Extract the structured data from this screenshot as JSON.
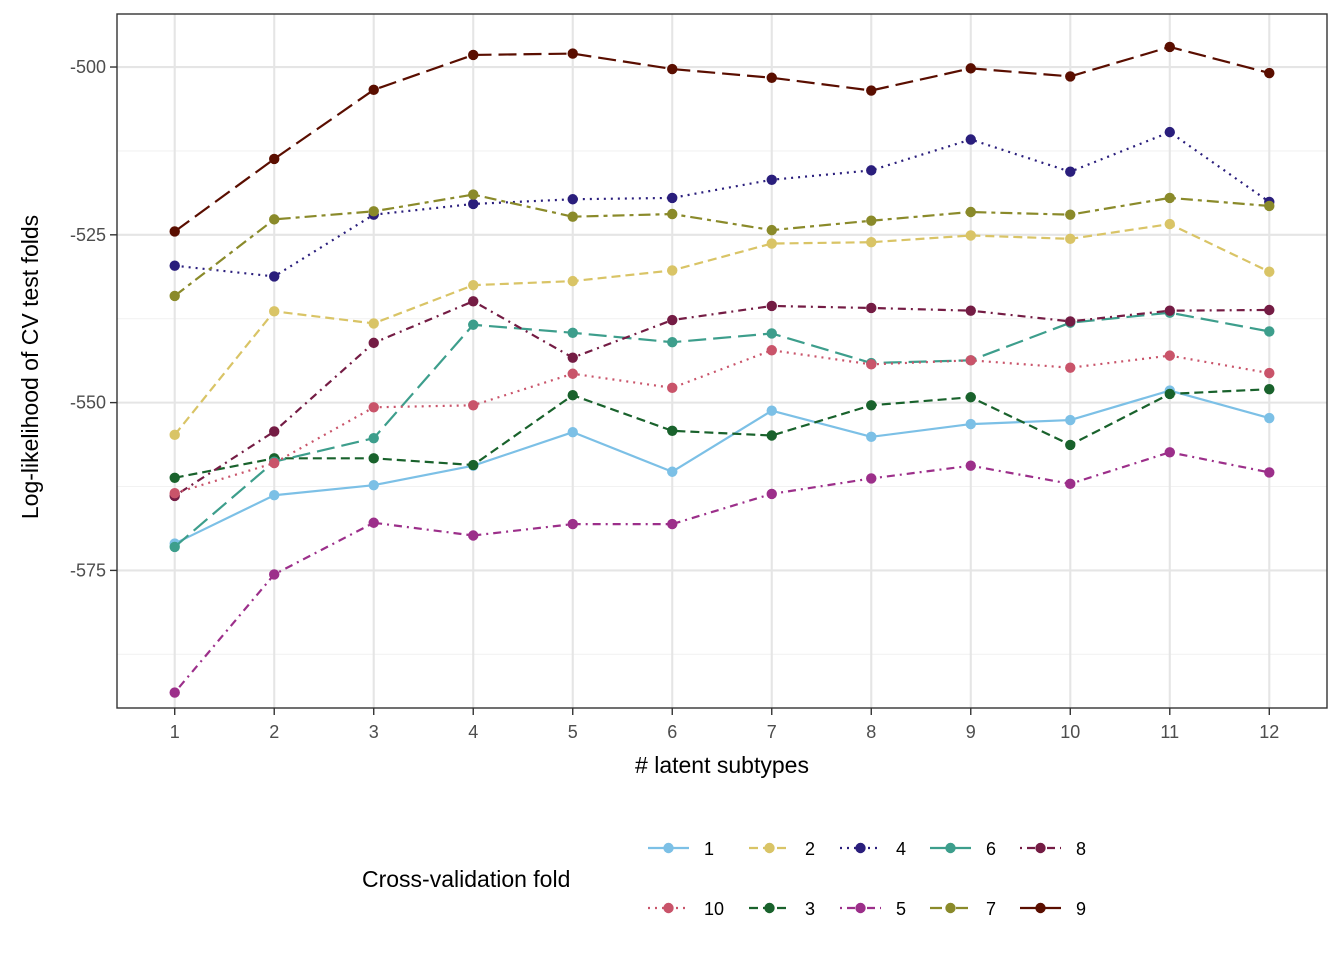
{
  "chart_data": {
    "type": "line",
    "title": "",
    "xlabel": "# latent subtypes",
    "ylabel": "Log-likelihood of CV test folds",
    "x": [
      1,
      2,
      3,
      4,
      5,
      6,
      7,
      8,
      9,
      10,
      11,
      12
    ],
    "x_ticks": [
      "1",
      "2",
      "3",
      "4",
      "5",
      "6",
      "7",
      "8",
      "9",
      "10",
      "11",
      "12"
    ],
    "xlim": [
      0.42,
      12.58
    ],
    "ylim": [
      -595.5,
      -492.1
    ],
    "y_ticks": [
      -575,
      -550,
      -525,
      -500
    ],
    "y_tick_labels": [
      "-575",
      "-550",
      "-525",
      "-500"
    ],
    "grid": true,
    "legend": {
      "title": "Cross-validation fold",
      "position": "bottom",
      "order": [
        "1",
        "2",
        "4",
        "6",
        "8",
        "10",
        "3",
        "5",
        "7",
        "9"
      ]
    },
    "series": [
      {
        "name": "1",
        "color": "#7CC0E6",
        "linetype": "solid",
        "values": [
          -571.0,
          -563.8,
          -562.3,
          -559.4,
          -554.4,
          -560.3,
          -551.2,
          -555.1,
          -553.2,
          -552.6,
          -548.2,
          -552.3
        ]
      },
      {
        "name": "2",
        "color": "#D9C466",
        "linetype": "dashed",
        "values": [
          -554.8,
          -536.4,
          -538.2,
          -532.5,
          -531.9,
          -530.3,
          -526.3,
          -526.1,
          -525.1,
          -525.6,
          -523.4,
          -530.5
        ]
      },
      {
        "name": "3",
        "color": "#19622C",
        "linetype": "dashed",
        "values": [
          -561.2,
          -558.3,
          -558.3,
          -559.3,
          -548.9,
          -554.2,
          -554.9,
          -550.4,
          -549.2,
          -556.3,
          -548.7,
          -548.0
        ]
      },
      {
        "name": "4",
        "color": "#2A1E7C",
        "linetype": "dotted",
        "values": [
          -529.6,
          -531.2,
          -522.0,
          -520.4,
          -519.7,
          -519.5,
          -516.8,
          -515.4,
          -510.8,
          -515.6,
          -509.7,
          -520.1
        ]
      },
      {
        "name": "5",
        "color": "#9C2F8A",
        "linetype": "dotdash",
        "values": [
          -593.2,
          -575.6,
          -567.9,
          -569.8,
          -568.1,
          -568.1,
          -563.6,
          -561.3,
          -559.4,
          -562.1,
          -557.4,
          -560.4
        ]
      },
      {
        "name": "6",
        "color": "#3D9E8C",
        "linetype": "longdash",
        "values": [
          -571.5,
          -558.8,
          -555.3,
          -538.4,
          -539.6,
          -541.0,
          -539.7,
          -544.1,
          -543.7,
          -538.1,
          -536.6,
          -539.4
        ]
      },
      {
        "name": "7",
        "color": "#8A8A2A",
        "linetype": "twodash",
        "values": [
          -534.1,
          -522.7,
          -521.5,
          -519.0,
          -522.3,
          -521.9,
          -524.3,
          -522.9,
          -521.6,
          -522.0,
          -519.5,
          -520.7
        ]
      },
      {
        "name": "8",
        "color": "#741C44",
        "linetype": "dotdash",
        "values": [
          -563.9,
          -554.3,
          -541.1,
          -534.9,
          -543.3,
          -537.7,
          -535.6,
          -535.9,
          -536.3,
          -537.9,
          -536.3,
          -536.2
        ]
      },
      {
        "name": "9",
        "color": "#5A0E00",
        "linetype": "longdash",
        "values": [
          -524.5,
          -513.7,
          -503.4,
          -498.2,
          -498.0,
          -500.3,
          -501.6,
          -503.5,
          -500.2,
          -501.4,
          -497.0,
          -500.9
        ]
      },
      {
        "name": "10",
        "color": "#C9546A",
        "linetype": "dotted",
        "values": [
          -563.5,
          -559.0,
          -550.7,
          -550.4,
          -545.7,
          -547.8,
          -542.2,
          -544.3,
          -543.7,
          -544.8,
          -543.0,
          -545.6
        ]
      }
    ]
  }
}
